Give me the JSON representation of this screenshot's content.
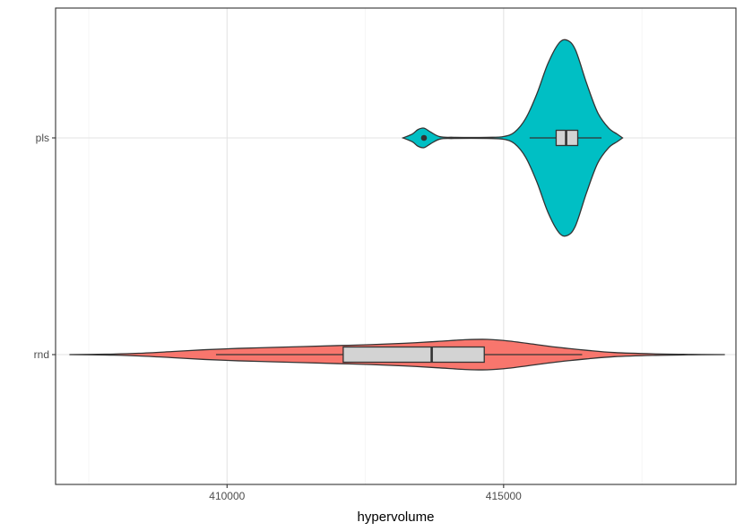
{
  "chart_data": {
    "type": "violin",
    "orientation": "horizontal",
    "title": "",
    "xlabel": "hypervolume",
    "ylabel": "",
    "xlim": [
      406900,
      419200
    ],
    "x_ticks": [
      410000,
      415000
    ],
    "x_tick_labels": [
      "410000",
      "415000"
    ],
    "categories": [
      "rnd",
      "pls"
    ],
    "grid": true,
    "legend": "none",
    "series": [
      {
        "category": "pls",
        "fill": "#00BFC4",
        "density": [
          [
            413180,
            0.0
          ],
          [
            413350,
            0.04
          ],
          [
            413450,
            0.085
          ],
          [
            413560,
            0.1
          ],
          [
            413680,
            0.06
          ],
          [
            413850,
            0.012
          ],
          [
            414100,
            0.006
          ],
          [
            414700,
            0.006
          ],
          [
            415000,
            0.014
          ],
          [
            415200,
            0.06
          ],
          [
            415400,
            0.2
          ],
          [
            415600,
            0.45
          ],
          [
            415800,
            0.76
          ],
          [
            416000,
            0.97
          ],
          [
            416150,
            1.0
          ],
          [
            416300,
            0.9
          ],
          [
            416500,
            0.56
          ],
          [
            416700,
            0.26
          ],
          [
            416900,
            0.1
          ],
          [
            417050,
            0.04
          ],
          [
            417150,
            0.0
          ]
        ],
        "box": {
          "whisker_low": 415470,
          "q1": 415950,
          "median": 416130,
          "q3": 416340,
          "whisker_high": 416770
        },
        "outliers": [
          413560
        ]
      },
      {
        "category": "rnd",
        "fill": "#F8766D",
        "density": [
          [
            407150,
            0.0
          ],
          [
            407800,
            0.02
          ],
          [
            408400,
            0.07
          ],
          [
            409000,
            0.16
          ],
          [
            409600,
            0.26
          ],
          [
            410200,
            0.33
          ],
          [
            410800,
            0.38
          ],
          [
            411400,
            0.43
          ],
          [
            412000,
            0.48
          ],
          [
            412600,
            0.53
          ],
          [
            413200,
            0.6
          ],
          [
            413800,
            0.7
          ],
          [
            414300,
            0.79
          ],
          [
            414700,
            0.81
          ],
          [
            415100,
            0.72
          ],
          [
            415600,
            0.53
          ],
          [
            416000,
            0.38
          ],
          [
            416500,
            0.23
          ],
          [
            417000,
            0.11
          ],
          [
            417700,
            0.04
          ],
          [
            418400,
            0.01
          ],
          [
            419000,
            0.0
          ]
        ],
        "box": {
          "whisker_low": 409800,
          "q1": 412100,
          "median": 413700,
          "q3": 414650,
          "whisker_high": 416420
        },
        "outliers": []
      }
    ]
  }
}
